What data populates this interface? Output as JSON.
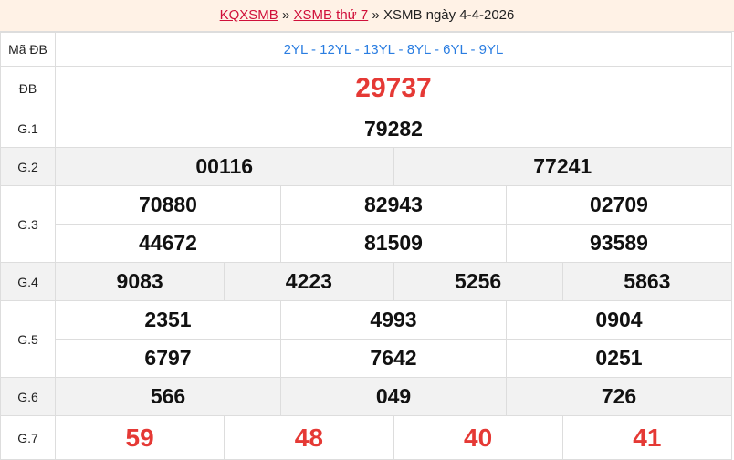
{
  "breadcrumb": {
    "home": "KQXSMB",
    "sep": "»",
    "day": "XSMB thứ 7",
    "current": "XSMB ngày 4-4-2026"
  },
  "rows": {
    "ma_db": {
      "label": "Mã ĐB",
      "value": "2YL - 12YL - 13YL - 8YL - 6YL - 9YL"
    },
    "db": {
      "label": "ĐB",
      "value": "29737"
    },
    "g1": {
      "label": "G.1",
      "values": [
        "79282"
      ]
    },
    "g2": {
      "label": "G.2",
      "values": [
        "00116",
        "77241"
      ]
    },
    "g3": {
      "label": "G.3",
      "values": [
        "70880",
        "82943",
        "02709",
        "44672",
        "81509",
        "93589"
      ]
    },
    "g4": {
      "label": "G.4",
      "values": [
        "9083",
        "4223",
        "5256",
        "5863"
      ]
    },
    "g5": {
      "label": "G.5",
      "values": [
        "2351",
        "4993",
        "0904",
        "6797",
        "7642",
        "0251"
      ]
    },
    "g6": {
      "label": "G.6",
      "values": [
        "566",
        "049",
        "726"
      ]
    },
    "g7": {
      "label": "G.7",
      "values": [
        "59",
        "48",
        "40",
        "41"
      ]
    }
  },
  "colors": {
    "link": "#d0103a",
    "special": "#e53935",
    "code": "#2a7de1",
    "header_bg": "#fff2e6",
    "alt_row": "#f2f2f2"
  }
}
